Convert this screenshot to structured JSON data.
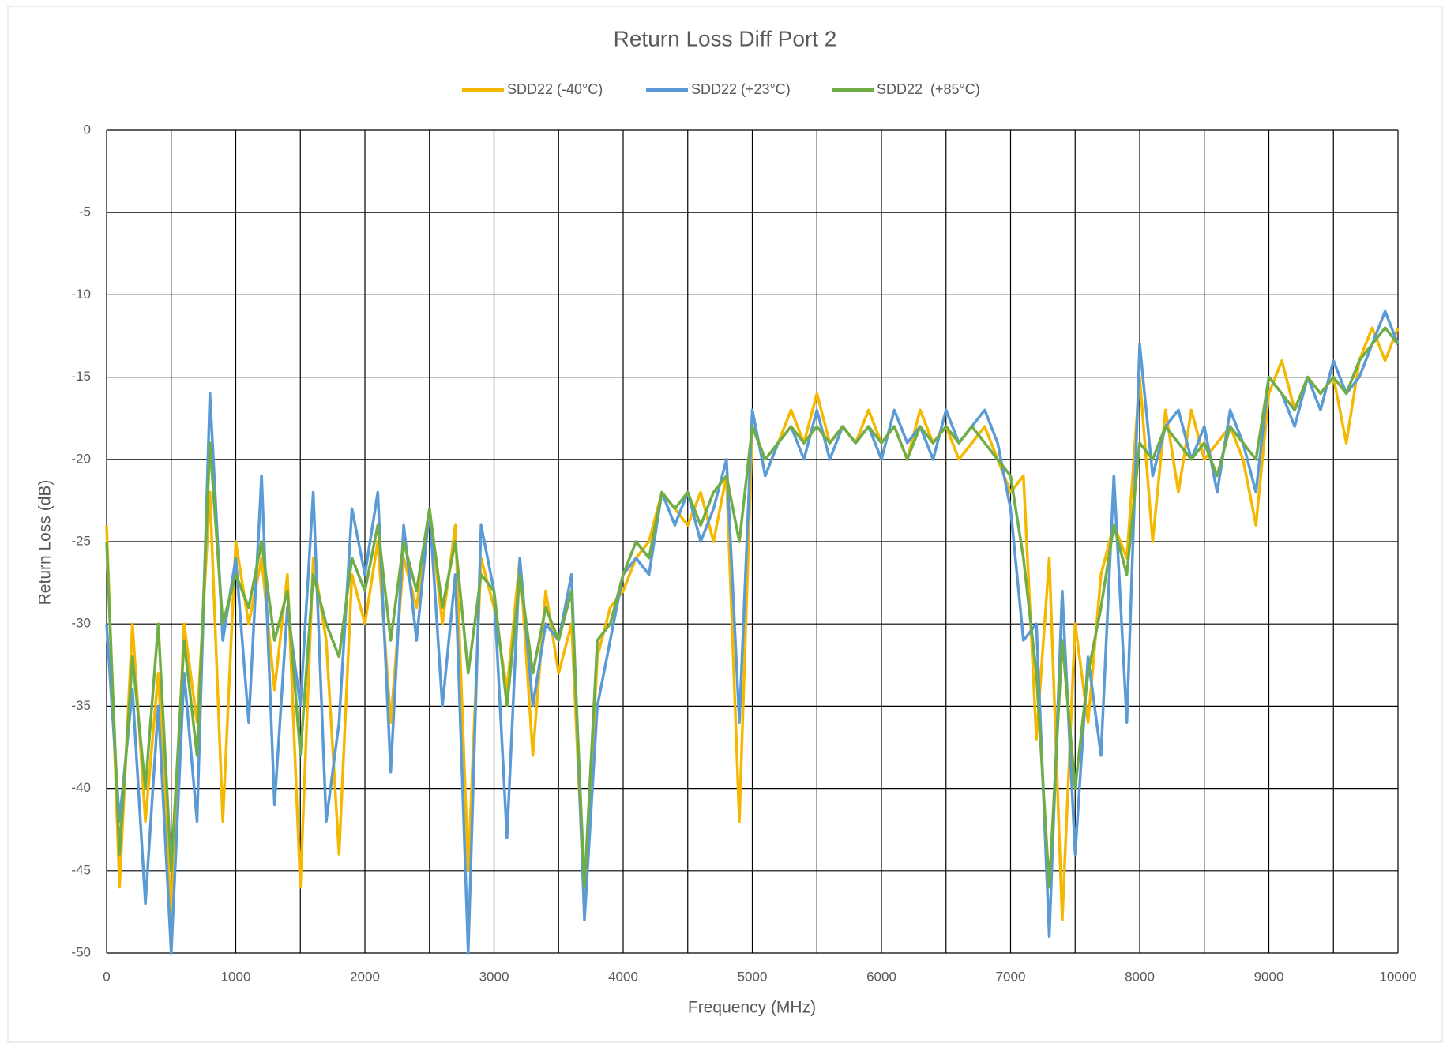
{
  "chart_data": {
    "type": "line",
    "title": "Return Loss Diff Port 2",
    "xlabel": "Frequency (MHz)",
    "ylabel": "Return Loss (dB)",
    "x": [
      0,
      100,
      200,
      300,
      400,
      500,
      600,
      700,
      800,
      900,
      1000,
      1100,
      1200,
      1300,
      1400,
      1500,
      1600,
      1700,
      1800,
      1900,
      2000,
      2100,
      2200,
      2300,
      2400,
      2500,
      2600,
      2700,
      2800,
      2900,
      3000,
      3100,
      3200,
      3300,
      3400,
      3500,
      3600,
      3700,
      3800,
      3900,
      4000,
      4100,
      4200,
      4300,
      4400,
      4500,
      4600,
      4700,
      4800,
      4900,
      5000,
      5100,
      5200,
      5300,
      5400,
      5500,
      5600,
      5700,
      5800,
      5900,
      6000,
      6100,
      6200,
      6300,
      6400,
      6500,
      6600,
      6700,
      6800,
      6900,
      7000,
      7100,
      7200,
      7300,
      7400,
      7500,
      7600,
      7700,
      7800,
      7900,
      8000,
      8100,
      8200,
      8300,
      8400,
      8500,
      8600,
      8700,
      8800,
      8900,
      9000,
      9100,
      9200,
      9300,
      9400,
      9500,
      9600,
      9700,
      9800,
      9900,
      10000
    ],
    "series": [
      {
        "name": "SDD22 (-40°C)",
        "color": "#f5b800",
        "values": [
          -24,
          -46,
          -30,
          -42,
          -33,
          -48,
          -30,
          -36,
          -22,
          -42,
          -25,
          -30,
          -26,
          -34,
          -27,
          -46,
          -26,
          -31,
          -44,
          -27,
          -30,
          -25,
          -36,
          -26,
          -29,
          -23,
          -30,
          -24,
          -45,
          -26,
          -29,
          -34,
          -26,
          -38,
          -28,
          -33,
          -30,
          -47,
          -32,
          -29,
          -28,
          -26,
          -25,
          -22,
          -23,
          -24,
          -22,
          -25,
          -21,
          -42,
          -18,
          -20,
          -19,
          -17,
          -19,
          -16,
          -19,
          -18,
          -19,
          -17,
          -19,
          -18,
          -20,
          -17,
          -19,
          -18,
          -20,
          -19,
          -18,
          -20,
          -22,
          -21,
          -37,
          -26,
          -48,
          -30,
          -36,
          -27,
          -24,
          -26,
          -15,
          -25,
          -17,
          -22,
          -17,
          -20,
          -19,
          -18,
          -20,
          -24,
          -16,
          -14,
          -17,
          -15,
          -16,
          -15,
          -19,
          -14,
          -12,
          -14,
          -12
        ]
      },
      {
        "name": "SDD22 (+23°C)",
        "color": "#5b9bd5",
        "values": [
          -30,
          -42,
          -34,
          -47,
          -35,
          -50,
          -33,
          -42,
          -16,
          -31,
          -26,
          -36,
          -21,
          -41,
          -29,
          -35,
          -22,
          -42,
          -36,
          -23,
          -27,
          -22,
          -39,
          -24,
          -31,
          -23,
          -35,
          -27,
          -50,
          -24,
          -28,
          -43,
          -26,
          -35,
          -30,
          -31,
          -27,
          -48,
          -35,
          -31,
          -27,
          -26,
          -27,
          -22,
          -24,
          -22,
          -25,
          -23,
          -20,
          -36,
          -17,
          -21,
          -19,
          -18,
          -20,
          -17,
          -20,
          -18,
          -19,
          -18,
          -20,
          -17,
          -19,
          -18,
          -20,
          -17,
          -19,
          -18,
          -17,
          -19,
          -23,
          -31,
          -30,
          -49,
          -28,
          -44,
          -32,
          -38,
          -21,
          -36,
          -13,
          -21,
          -18,
          -17,
          -20,
          -18,
          -22,
          -17,
          -19,
          -22,
          -15,
          -16,
          -18,
          -15,
          -17,
          -14,
          -16,
          -15,
          -13,
          -11,
          -13
        ]
      },
      {
        "name": "SDD22  (+85°C)",
        "color": "#70ad47",
        "values": [
          -25,
          -44,
          -32,
          -40,
          -30,
          -45,
          -31,
          -38,
          -19,
          -30,
          -27,
          -29,
          -25,
          -31,
          -28,
          -38,
          -27,
          -30,
          -32,
          -26,
          -28,
          -24,
          -31,
          -25,
          -28,
          -23,
          -29,
          -25,
          -33,
          -27,
          -28,
          -35,
          -27,
          -33,
          -29,
          -31,
          -28,
          -46,
          -31,
          -30,
          -27,
          -25,
          -26,
          -22,
          -23,
          -22,
          -24,
          -22,
          -21,
          -25,
          -18,
          -20,
          -19,
          -18,
          -19,
          -18,
          -19,
          -18,
          -19,
          -18,
          -19,
          -18,
          -20,
          -18,
          -19,
          -18,
          -19,
          -18,
          -19,
          -20,
          -21,
          -26,
          -33,
          -46,
          -31,
          -40,
          -33,
          -29,
          -24,
          -27,
          -19,
          -20,
          -18,
          -19,
          -20,
          -19,
          -21,
          -18,
          -19,
          -20,
          -15,
          -16,
          -17,
          -15,
          -16,
          -15,
          -16,
          -14,
          -13,
          -12,
          -13
        ]
      }
    ],
    "xlim": [
      0,
      10000
    ],
    "xticks": [
      0,
      1000,
      2000,
      3000,
      4000,
      5000,
      6000,
      7000,
      8000,
      9000,
      10000
    ],
    "x_minor_grid": [
      500,
      1500,
      2500,
      3500,
      4500,
      5500,
      6500,
      7500,
      8500,
      9500
    ],
    "ylim": [
      -50,
      0
    ],
    "yticks": [
      -50,
      -45,
      -40,
      -35,
      -30,
      -25,
      -20,
      -15,
      -10,
      -5,
      0
    ],
    "grid": true,
    "legend": "top"
  }
}
